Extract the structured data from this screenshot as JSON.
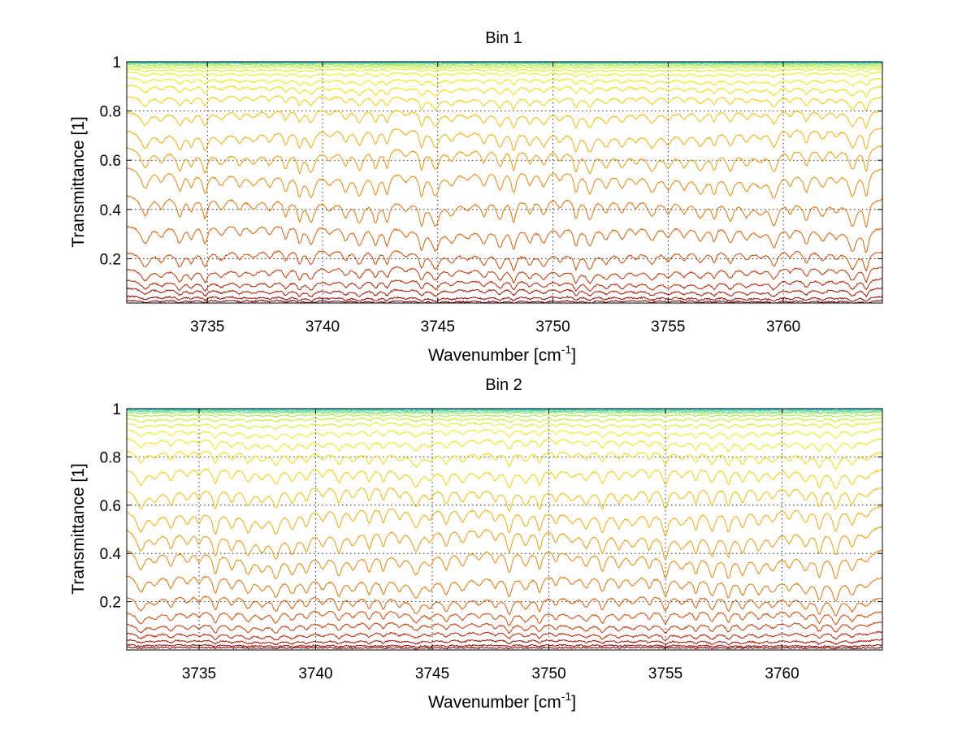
{
  "chart_data": [
    {
      "type": "line",
      "title": "Bin 1",
      "xlabel": "Wavenumber [cm",
      "xlabel_superscript": "-1",
      "xlabel_close": "]",
      "ylabel": "Transmittance [1]",
      "xlim": [
        3731.5,
        3764.3
      ],
      "ylim": [
        0.02,
        1.0
      ],
      "xticks": [
        3735,
        3740,
        3745,
        3750,
        3755,
        3760
      ],
      "yticks": [
        0.2,
        0.4,
        0.6,
        0.8,
        1
      ],
      "xtick_labels": [
        "3735",
        "3740",
        "3745",
        "3750",
        "3755",
        "3760"
      ],
      "ytick_labels": [
        "0.2",
        "0.4",
        "0.6",
        "0.8",
        "1"
      ],
      "grid": true,
      "series_count": 24,
      "series_note_colors": [
        "#7f0000",
        "#b01800",
        "#d84a00",
        "#e88000",
        "#f0b000",
        "#f2dc00",
        "#e8f020",
        "#b0ec40",
        "#60d8a0",
        "#20c8e0"
      ],
      "series_baselines": [
        0.03,
        0.045,
        0.075,
        0.11,
        0.16,
        0.23,
        0.33,
        0.44,
        0.55,
        0.64,
        0.72,
        0.8,
        0.86,
        0.9,
        0.93,
        0.955,
        0.97,
        0.98,
        0.987,
        0.992,
        0.995,
        0.997,
        0.998,
        0.999
      ],
      "absorption_lines": [
        3732.3,
        3733.0,
        3733.8,
        3734.3,
        3734.9,
        3735.6,
        3736.4,
        3737.0,
        3737.7,
        3738.4,
        3739.0,
        3739.5,
        3740.3,
        3741.0,
        3741.6,
        3742.3,
        3742.8,
        3743.6,
        3744.3,
        3744.9,
        3745.6,
        3746.3,
        3747.0,
        3747.7,
        3748.3,
        3749.0,
        3749.6,
        3750.3,
        3751.0,
        3751.6,
        3752.3,
        3753.0,
        3753.6,
        3754.3,
        3755.0,
        3755.7,
        3756.4,
        3757.0,
        3757.7,
        3758.4,
        3759.0,
        3759.6,
        3760.3,
        3761.0,
        3761.7,
        3762.3,
        3763.0,
        3763.6
      ]
    },
    {
      "type": "line",
      "title": "Bin 2",
      "xlabel": "Wavenumber [cm",
      "xlabel_superscript": "-1",
      "xlabel_close": "]",
      "ylabel": "Transmittance [1]",
      "xlim": [
        3731.9,
        3764.3
      ],
      "ylim": [
        0.0,
        1.0
      ],
      "xticks": [
        3735,
        3740,
        3745,
        3750,
        3755,
        3760
      ],
      "yticks": [
        0.2,
        0.4,
        0.6,
        0.8,
        1
      ],
      "xtick_labels": [
        "3735",
        "3740",
        "3745",
        "3750",
        "3755",
        "3760"
      ],
      "ytick_labels": [
        "0.2",
        "0.4",
        "0.6",
        "0.8",
        "1"
      ],
      "grid": true,
      "series_count": 24,
      "series_note_colors": [
        "#7f0000",
        "#b01800",
        "#d84a00",
        "#e88000",
        "#f0b000",
        "#f2dc00",
        "#e8f020",
        "#b0ec40",
        "#60d8a0",
        "#20c8e0"
      ],
      "series_baselines": [
        0.01,
        0.02,
        0.04,
        0.07,
        0.11,
        0.16,
        0.22,
        0.3,
        0.4,
        0.49,
        0.58,
        0.67,
        0.75,
        0.82,
        0.87,
        0.91,
        0.94,
        0.96,
        0.975,
        0.985,
        0.99,
        0.994,
        0.997,
        0.999
      ],
      "absorption_lines": [
        3732.5,
        3733.1,
        3733.8,
        3734.5,
        3735.0,
        3735.7,
        3736.4,
        3737.1,
        3737.7,
        3738.3,
        3739.0,
        3739.6,
        3740.3,
        3741.0,
        3741.6,
        3742.3,
        3742.9,
        3743.6,
        3744.3,
        3744.9,
        3745.6,
        3746.3,
        3747.0,
        3747.7,
        3748.3,
        3749.0,
        3749.6,
        3750.3,
        3751.0,
        3751.6,
        3752.3,
        3753.0,
        3753.6,
        3754.3,
        3755.0,
        3755.7,
        3756.3,
        3757.0,
        3757.7,
        3758.3,
        3759.0,
        3759.6,
        3760.3,
        3761.0,
        3761.6,
        3762.3,
        3763.0,
        3763.6
      ]
    }
  ]
}
